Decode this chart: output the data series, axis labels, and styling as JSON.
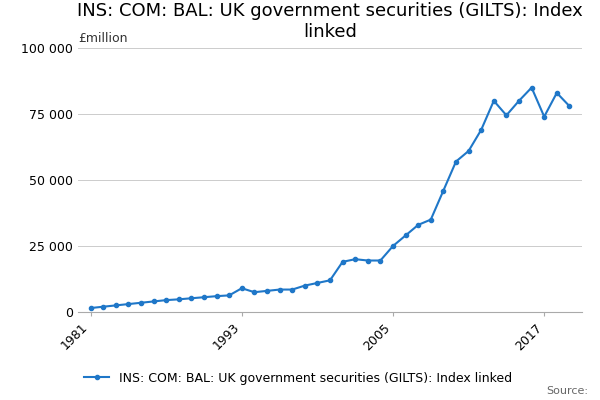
{
  "title": "INS: COM: BAL: UK government securities (GILTS): Index\nlinked",
  "ylabel_text": "£million",
  "legend_label": "INS: COM: BAL: UK government securities (GILTS): Index linked",
  "source_text": "Source:",
  "line_color": "#1f77c8",
  "marker": "o",
  "marker_size": 3,
  "years": [
    1981,
    1982,
    1983,
    1984,
    1985,
    1986,
    1987,
    1988,
    1989,
    1990,
    1991,
    1992,
    1993,
    1994,
    1995,
    1996,
    1997,
    1998,
    1999,
    2000,
    2001,
    2002,
    2003,
    2004,
    2005,
    2006,
    2007,
    2008,
    2009,
    2010,
    2011,
    2012,
    2013,
    2014,
    2015,
    2016,
    2017,
    2018,
    2019
  ],
  "values": [
    1500,
    2000,
    2500,
    3000,
    3500,
    4000,
    4500,
    4800,
    5200,
    5600,
    6000,
    6300,
    9000,
    7500,
    8000,
    8500,
    8500,
    10000,
    11000,
    12000,
    19000,
    20000,
    19500,
    19500,
    25000,
    29000,
    33000,
    35000,
    46000,
    57000,
    61000,
    69000,
    80000,
    74500,
    80000,
    85000,
    74000,
    83000,
    78000
  ],
  "ylim": [
    0,
    100000
  ],
  "yticks": [
    0,
    25000,
    50000,
    75000,
    100000
  ],
  "ytick_labels": [
    "0",
    "25 000",
    "50 000",
    "75 000",
    "100 000"
  ],
  "xticks": [
    1981,
    1993,
    2005,
    2017
  ],
  "background_color": "#ffffff",
  "grid_color": "#cccccc",
  "title_fontsize": 13,
  "tick_fontsize": 9,
  "label_fontsize": 9,
  "legend_fontsize": 9,
  "source_fontsize": 8
}
